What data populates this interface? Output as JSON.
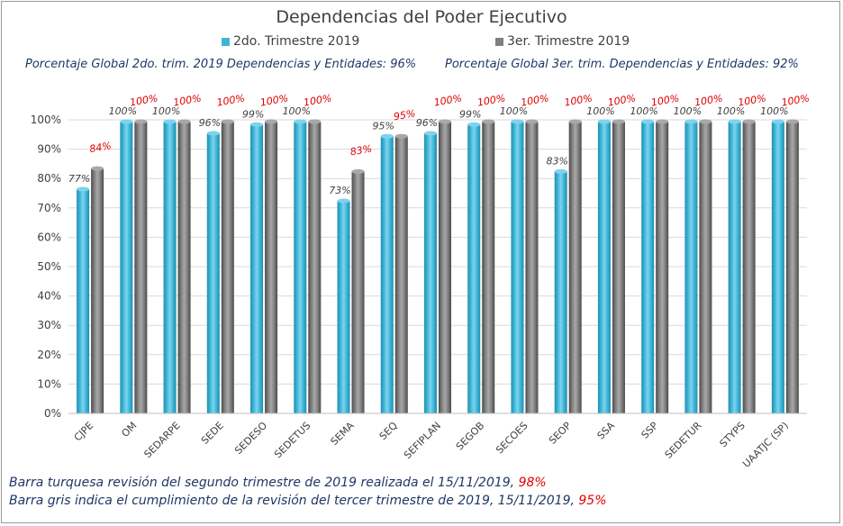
{
  "chart_data": {
    "type": "bar",
    "title": "Dependencias del Poder Ejecutivo",
    "categories": [
      "CJPE",
      "OM",
      "SEDARPE",
      "SEDE",
      "SEDESO",
      "SEDETUS",
      "SEMA",
      "SEQ",
      "SEFIPLAN",
      "SEGOB",
      "SECOES",
      "SEOP",
      "SSA",
      "SSP",
      "SEDETUR",
      "STYPS",
      "UAATJC (SP)"
    ],
    "series": [
      {
        "name": "2do. Trimestre 2019",
        "color": "#3db5d8",
        "values": [
          77,
          100,
          100,
          96,
          99,
          100,
          73,
          95,
          96,
          99,
          100,
          83,
          100,
          100,
          100,
          100,
          100
        ],
        "labels": [
          "77%",
          "100%",
          "100%",
          "96%",
          "99%",
          "100%",
          "73%",
          "95%",
          "96%",
          "99%",
          "100%",
          "83%",
          "100%",
          "100%",
          "100%",
          "100%",
          "100%"
        ]
      },
      {
        "name": "3er. Trimestre 2019",
        "color": "#7f7f7f",
        "values": [
          84,
          100,
          100,
          100,
          100,
          100,
          83,
          95,
          100,
          100,
          100,
          100,
          100,
          100,
          100,
          100,
          100
        ],
        "labels": [
          "84%",
          "100%",
          "100%",
          "100%",
          "100%",
          "100%",
          "83%",
          "95%",
          "100%",
          "100%",
          "100%",
          "100%",
          "100%",
          "100%",
          "100%",
          "100%",
          "100%"
        ]
      }
    ],
    "yticks": [
      "0%",
      "10%",
      "20%",
      "30%",
      "40%",
      "50%",
      "60%",
      "70%",
      "80%",
      "90%",
      "100%"
    ],
    "ylim": [
      0,
      100
    ],
    "xlabel": "",
    "ylabel": "",
    "grid": true,
    "legend_position": "top-center"
  },
  "global_text": {
    "q2": "Porcentaje Global 2do. trim. 2019 Dependencias y Entidades: 96%",
    "q3": "Porcentaje Global  3er. trim. Dependencias y Entidades: 92%"
  },
  "notes": {
    "line1_text": "Barra turquesa  revisión  del  segundo  trimestre  de  2019  realizada  el   15/11/2019, ",
    "line1_value": "98%",
    "line2_text": "Barra gris indica el cumplimiento  de la revisión  del  tercer trimestre  de 2019,  15/11/2019,  ",
    "line2_value": "95%"
  }
}
